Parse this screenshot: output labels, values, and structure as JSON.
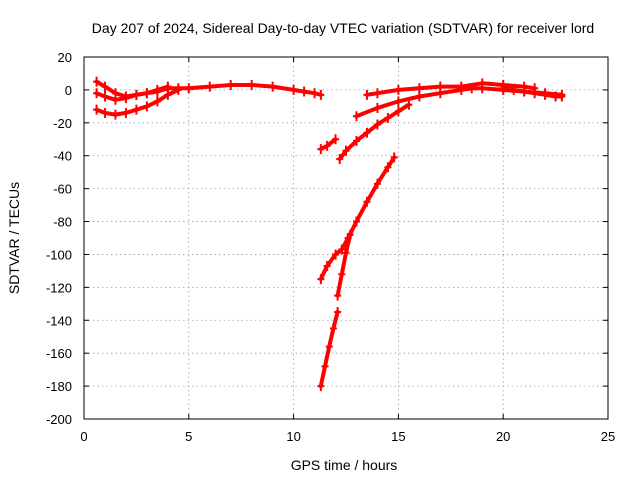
{
  "chart_data": {
    "type": "line",
    "title": "Day 207 of 2024, Sidereal Day-to-day VTEC variation (SDTVAR) for receiver lord",
    "xlabel": "GPS time / hours",
    "ylabel": "SDTVAR / TECUs",
    "xlim": [
      0,
      25
    ],
    "ylim": [
      -200,
      20
    ],
    "xticks": [
      0,
      5,
      10,
      15,
      20,
      25
    ],
    "yticks": [
      20,
      0,
      -20,
      -40,
      -60,
      -80,
      -100,
      -120,
      -140,
      -160,
      -180,
      -200
    ],
    "grid": true,
    "color": "#ff0000",
    "series": [
      {
        "x": [
          0.6,
          1.0,
          1.5,
          2.0,
          2.5,
          3.0,
          3.5,
          4.0,
          4.5,
          5.0,
          6.0,
          7.0,
          8.0,
          9.0,
          10.0,
          10.5,
          11.0,
          11.3
        ],
        "y": [
          5,
          2,
          -2,
          -4,
          -3,
          -2,
          -1,
          1,
          1,
          1,
          2,
          3,
          3,
          2,
          0,
          -1,
          -2,
          -3
        ]
      },
      {
        "x": [
          0.6,
          1.0,
          1.5,
          2.0,
          2.5,
          3.0,
          3.5,
          4.0
        ],
        "y": [
          -2,
          -4,
          -6,
          -5,
          -3,
          -2,
          0,
          2
        ]
      },
      {
        "x": [
          0.6,
          1.0,
          1.5,
          2.0,
          2.5,
          3.0,
          3.5,
          4.0,
          4.5
        ],
        "y": [
          -12,
          -14,
          -15,
          -14,
          -12,
          -10,
          -7,
          -3,
          0
        ]
      },
      {
        "x": [
          11.3,
          11.6,
          12.0
        ],
        "y": [
          -36,
          -34,
          -30
        ]
      },
      {
        "x": [
          12.2,
          12.5,
          13.0,
          13.5,
          14.0,
          14.5,
          15.0,
          15.5
        ],
        "y": [
          -42,
          -37,
          -31,
          -26,
          -21,
          -17,
          -13,
          -9
        ]
      },
      {
        "x": [
          11.3,
          11.6,
          12.0,
          12.3,
          12.6,
          13.0,
          13.5,
          14.0,
          14.5,
          14.8
        ],
        "y": [
          -115,
          -107,
          -100,
          -97,
          -90,
          -80,
          -68,
          -57,
          -47,
          -41
        ]
      },
      {
        "x": [
          11.3,
          11.5,
          11.7,
          11.9,
          12.1
        ],
        "y": [
          -180,
          -168,
          -156,
          -145,
          -135
        ]
      },
      {
        "x": [
          12.1,
          12.3,
          12.5,
          12.7
        ],
        "y": [
          -125,
          -112,
          -99,
          -88
        ]
      },
      {
        "x": [
          13.0,
          14.0,
          15.0,
          16.0,
          17.0,
          18.0,
          18.5,
          19.0,
          20.0,
          21.0,
          22.0,
          22.8
        ],
        "y": [
          -16,
          -11,
          -7,
          -4,
          -2,
          0,
          1,
          1,
          0,
          -1,
          -2,
          -3
        ]
      },
      {
        "x": [
          13.5,
          14.0,
          15.0,
          16.0,
          17.0,
          18.0,
          19.0,
          20.0,
          21.0,
          21.5
        ],
        "y": [
          -3,
          -2,
          0,
          1,
          2,
          2,
          4,
          3,
          2,
          1
        ]
      },
      {
        "x": [
          20.0,
          20.5,
          21.0,
          21.5,
          22.0,
          22.5,
          22.8
        ],
        "y": [
          1,
          0,
          -1,
          -2,
          -3,
          -4,
          -4
        ]
      }
    ]
  }
}
